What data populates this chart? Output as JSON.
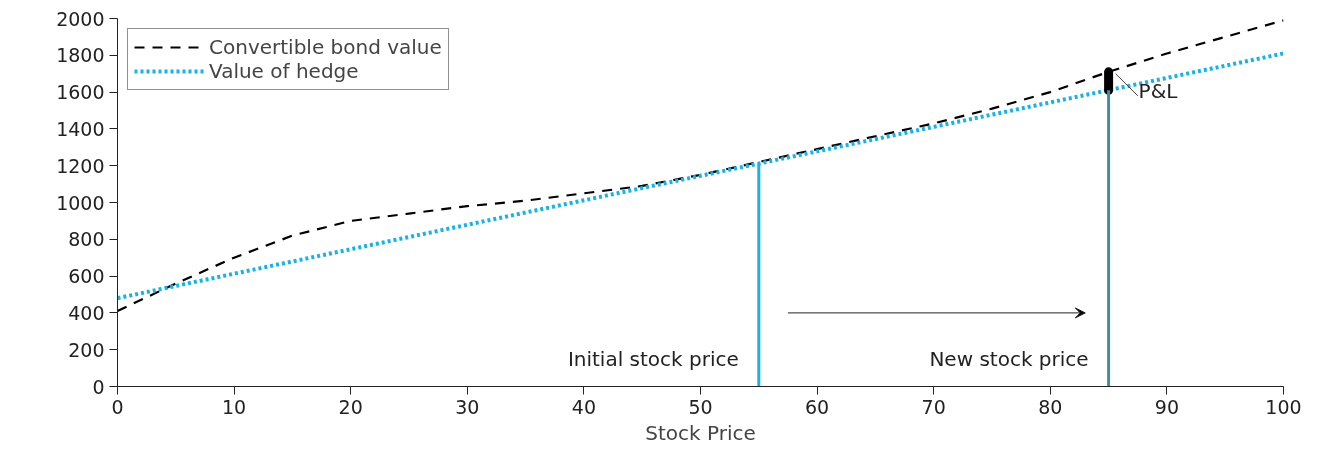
{
  "chart_data": {
    "type": "line",
    "xlabel": "Stock Price",
    "x": [
      0,
      5,
      10,
      15,
      20,
      25,
      30,
      35,
      40,
      45,
      50,
      55,
      60,
      65,
      70,
      75,
      80,
      85,
      90,
      95,
      100
    ],
    "series": [
      {
        "name": "Convertible bond value",
        "color": "#000000",
        "line_style": "dashed",
        "values": [
          410,
          560,
          700,
          820,
          900,
          940,
          980,
          1010,
          1050,
          1090,
          1150,
          1220,
          1290,
          1360,
          1430,
          1510,
          1600,
          1710,
          1810,
          1900,
          1990
        ]
      },
      {
        "name": "Value of hedge",
        "color": "#1ab0e8",
        "line_style": "dotted",
        "x": [
          0,
          100
        ],
        "values": [
          480,
          1810
        ]
      },
      {
        "color": "#000000",
        "line_style": "solid",
        "x": [
          85,
          85
        ],
        "values": [
          1610,
          1710
        ]
      }
    ],
    "xlim": [
      0,
      100
    ],
    "xticks": [
      0,
      10,
      20,
      30,
      40,
      50,
      60,
      70,
      80,
      90,
      100
    ],
    "ylim": [
      0,
      2000
    ],
    "yticks": [
      0,
      200,
      400,
      600,
      800,
      1000,
      1200,
      1400,
      1600,
      1800,
      2000
    ],
    "grid": false,
    "legend": "top left",
    "ref_lines": [
      {
        "axis": "x",
        "value": 55,
        "label": "Initial stock price",
        "color": "#1ab0e8"
      },
      {
        "axis": "x",
        "value": 85,
        "label": "New stock price",
        "color": "#4a8aa5"
      }
    ],
    "annotations": [
      {
        "text": "P&L",
        "x": 85,
        "y": 1660
      }
    ]
  }
}
